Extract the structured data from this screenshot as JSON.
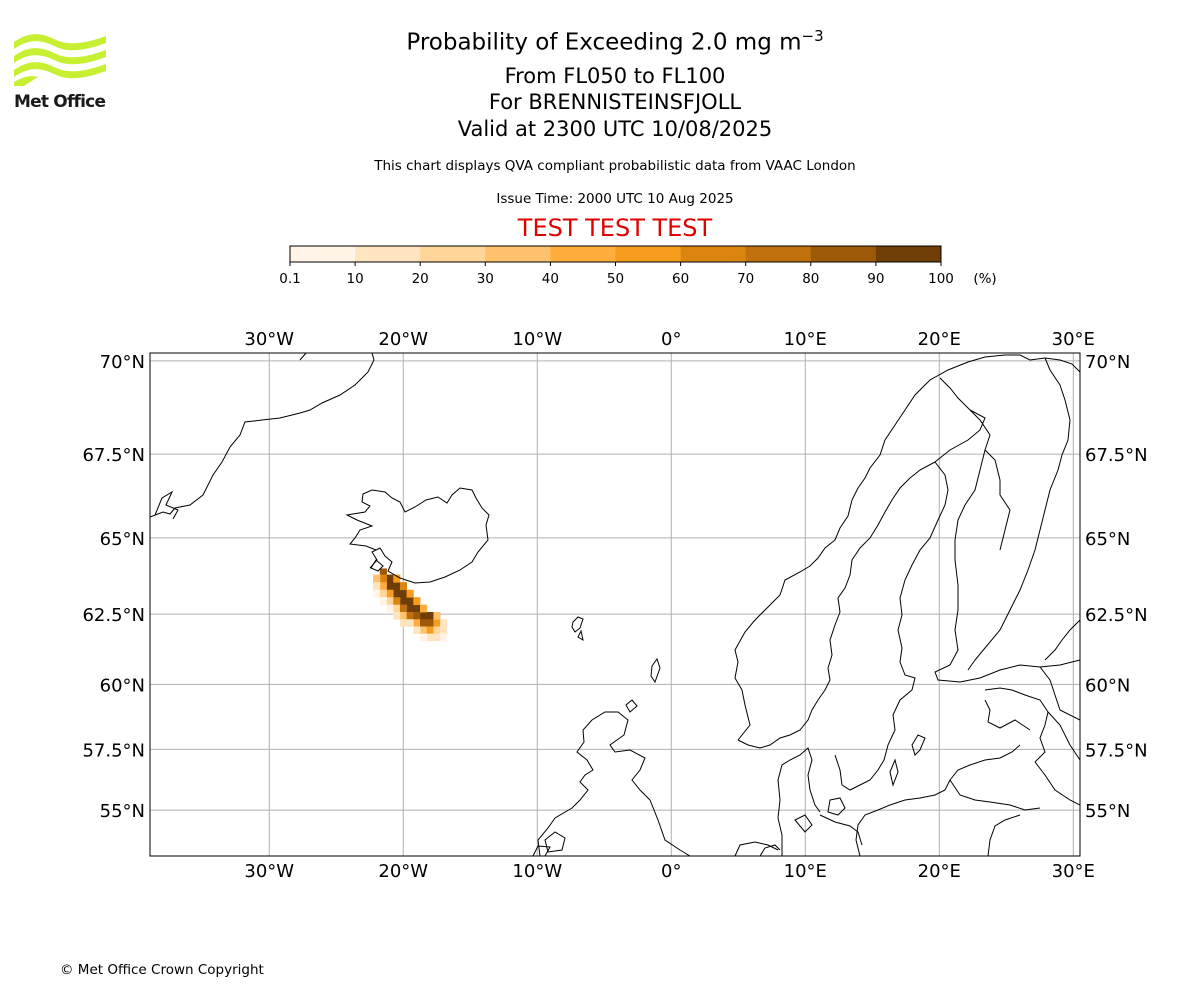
{
  "logo": {
    "text": "Met Office",
    "color": "#c8f032"
  },
  "header": {
    "title_main": "Probability of Exceeding 2.0 mg m",
    "title_exp": "−3",
    "level_range": "From FL050 to FL100",
    "volcano": "For BRENNISTEINSFJOLL",
    "valid": "Valid at 2300 UTC 10/08/2025",
    "note": "This chart displays QVA compliant probabilistic data from VAAC London",
    "issue": "Issue Time: 2000 UTC 10 Aug 2025",
    "test_banner": "TEST TEST TEST",
    "test_color": "#e00000"
  },
  "colorbar": {
    "ticks": [
      "0.1",
      "10",
      "20",
      "30",
      "40",
      "50",
      "60",
      "70",
      "80",
      "90",
      "100"
    ],
    "unit": "(%)",
    "colors": [
      "#fff4e6",
      "#ffe4c0",
      "#ffd599",
      "#ffc26c",
      "#ffad3c",
      "#f79d1e",
      "#dc8410",
      "#c0700c",
      "#9c5a08",
      "#6e3e06"
    ]
  },
  "map": {
    "lon_labels": [
      "30°W",
      "20°W",
      "10°W",
      "0°",
      "10°E",
      "20°E",
      "30°E"
    ],
    "lat_labels": [
      "70°N",
      "67.5°N",
      "65°N",
      "62.5°N",
      "60°N",
      "57.5°N",
      "55°N"
    ],
    "lon_values": [
      -30,
      -20,
      -10,
      0,
      10,
      20,
      30
    ],
    "lat_values": [
      70,
      67.5,
      65,
      62.5,
      60,
      57.5,
      55
    ],
    "extent": {
      "lon_min": -38.9,
      "lon_max": 30.5,
      "lat_min": 53,
      "lat_max": 70.2
    },
    "plume": [
      {
        "lon": -21.5,
        "lat": 63.9,
        "p": 80
      },
      {
        "lon": -21.0,
        "lat": 63.7,
        "p": 95
      },
      {
        "lon": -21.0,
        "lat": 63.45,
        "p": 95
      },
      {
        "lon": -20.5,
        "lat": 63.45,
        "p": 95
      },
      {
        "lon": -20.5,
        "lat": 63.2,
        "p": 95
      },
      {
        "lon": -20.0,
        "lat": 63.2,
        "p": 95
      },
      {
        "lon": -20.0,
        "lat": 62.95,
        "p": 95
      },
      {
        "lon": -19.5,
        "lat": 62.95,
        "p": 95
      },
      {
        "lon": -19.5,
        "lat": 62.7,
        "p": 95
      },
      {
        "lon": -19.0,
        "lat": 62.7,
        "p": 90
      },
      {
        "lon": -18.5,
        "lat": 62.45,
        "p": 95
      },
      {
        "lon": -18.0,
        "lat": 62.45,
        "p": 90
      },
      {
        "lon": -18.0,
        "lat": 62.2,
        "p": 85
      },
      {
        "lon": -21.5,
        "lat": 63.7,
        "p": 60
      },
      {
        "lon": -21.5,
        "lat": 63.45,
        "p": 40
      },
      {
        "lon": -22.0,
        "lat": 63.7,
        "p": 30
      },
      {
        "lon": -22.0,
        "lat": 63.45,
        "p": 15
      },
      {
        "lon": -21.0,
        "lat": 63.2,
        "p": 55
      },
      {
        "lon": -21.0,
        "lat": 62.95,
        "p": 20
      },
      {
        "lon": -20.5,
        "lat": 62.95,
        "p": 65
      },
      {
        "lon": -20.5,
        "lat": 62.7,
        "p": 25
      },
      {
        "lon": -20.0,
        "lat": 62.7,
        "p": 70
      },
      {
        "lon": -20.0,
        "lat": 62.45,
        "p": 30
      },
      {
        "lon": -19.5,
        "lat": 62.45,
        "p": 75
      },
      {
        "lon": -19.0,
        "lat": 62.45,
        "p": 85
      },
      {
        "lon": -19.0,
        "lat": 62.2,
        "p": 40
      },
      {
        "lon": -18.5,
        "lat": 62.2,
        "p": 80
      },
      {
        "lon": -18.5,
        "lat": 61.95,
        "p": 30
      },
      {
        "lon": -18.0,
        "lat": 61.95,
        "p": 55
      },
      {
        "lon": -17.5,
        "lat": 62.2,
        "p": 50
      },
      {
        "lon": -17.5,
        "lat": 61.95,
        "p": 25
      },
      {
        "lon": -17.5,
        "lat": 61.7,
        "p": 12
      },
      {
        "lon": -18.0,
        "lat": 61.7,
        "p": 15
      },
      {
        "lon": -18.5,
        "lat": 61.7,
        "p": 8
      },
      {
        "lon": -19.5,
        "lat": 62.2,
        "p": 15
      },
      {
        "lon": -20.5,
        "lat": 63.7,
        "p": 55
      },
      {
        "lon": -20.0,
        "lat": 63.45,
        "p": 60
      },
      {
        "lon": -19.5,
        "lat": 63.2,
        "p": 50
      },
      {
        "lon": -19.0,
        "lat": 62.95,
        "p": 55
      },
      {
        "lon": -18.5,
        "lat": 62.7,
        "p": 45
      },
      {
        "lon": -17.5,
        "lat": 62.45,
        "p": 30
      },
      {
        "lon": -22.0,
        "lat": 63.2,
        "p": 8
      },
      {
        "lon": -21.5,
        "lat": 63.2,
        "p": 25
      },
      {
        "lon": -21.5,
        "lat": 62.95,
        "p": 8
      },
      {
        "lon": -21.0,
        "lat": 62.7,
        "p": 8
      },
      {
        "lon": -20.5,
        "lat": 62.45,
        "p": 10
      },
      {
        "lon": -20.0,
        "lat": 62.2,
        "p": 10
      },
      {
        "lon": -19.0,
        "lat": 61.95,
        "p": 12
      },
      {
        "lon": -17.0,
        "lat": 62.2,
        "p": 10
      },
      {
        "lon": -17.0,
        "lat": 61.95,
        "p": 15
      },
      {
        "lon": -17.0,
        "lat": 61.7,
        "p": 8
      }
    ]
  },
  "footer": {
    "copyright": "© Met Office Crown Copyright"
  }
}
